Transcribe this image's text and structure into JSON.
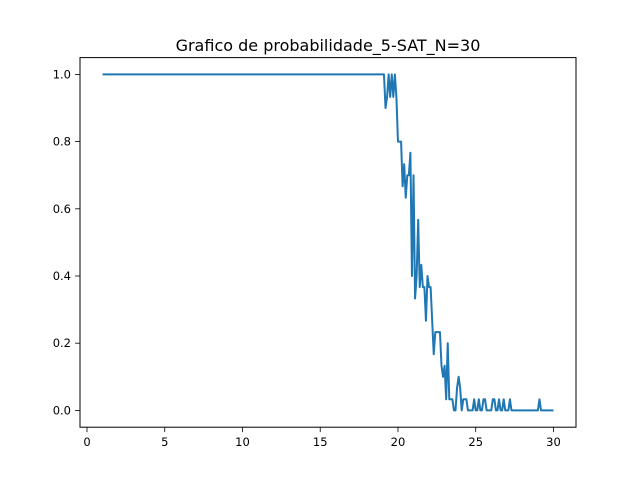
{
  "chart_data": {
    "type": "line",
    "title": "Grafico de probabilidade_5-SAT_N=30",
    "xlabel": "",
    "ylabel": "",
    "xlim": [
      -0.45,
      31.45
    ],
    "ylim": [
      -0.05,
      1.05
    ],
    "x_ticks": [
      0,
      5,
      10,
      15,
      20,
      25,
      30
    ],
    "y_ticks": [
      0.0,
      0.2,
      0.4,
      0.6,
      0.8,
      1.0
    ],
    "x_tick_labels": [
      "0",
      "5",
      "10",
      "15",
      "20",
      "25",
      "30"
    ],
    "y_tick_labels": [
      "0.0",
      "0.2",
      "0.4",
      "0.6",
      "0.8",
      "1.0"
    ],
    "grid": false,
    "legend": "none",
    "line_color": "#1f77b4",
    "series": [
      {
        "x": [
          1.0,
          19.1,
          19.2,
          19.3,
          19.4,
          19.5,
          19.6,
          19.7,
          19.8,
          19.9,
          20.0,
          20.2,
          20.3,
          20.4,
          20.5,
          20.6,
          20.7,
          20.8,
          20.9,
          21.0,
          21.1,
          21.2,
          21.3,
          21.4,
          21.5,
          21.6,
          21.7,
          21.8,
          21.9,
          22.0,
          22.1,
          22.2,
          22.3,
          22.4,
          22.5,
          22.6,
          22.7,
          22.8,
          22.9,
          23.0,
          23.1,
          23.2,
          23.3,
          23.4,
          23.5,
          23.6,
          23.7,
          23.8,
          23.9,
          24.0,
          24.1,
          24.2,
          24.3,
          24.4,
          24.5,
          24.6,
          24.7,
          24.8,
          24.9,
          25.0,
          25.1,
          25.2,
          25.3,
          25.4,
          25.5,
          25.6,
          25.7,
          25.8,
          25.9,
          26.0,
          26.1,
          26.2,
          26.3,
          26.4,
          26.5,
          26.6,
          26.7,
          26.8,
          26.9,
          27.0,
          27.1,
          27.2,
          27.3,
          27.4,
          27.5,
          28.9,
          29.0,
          29.1,
          29.2,
          30.0
        ],
        "values": [
          1.0,
          1.0,
          0.9,
          0.933,
          1.0,
          0.933,
          1.0,
          0.933,
          1.0,
          0.933,
          0.8,
          0.8,
          0.667,
          0.733,
          0.633,
          0.7,
          0.7,
          0.767,
          0.4,
          0.7,
          0.333,
          0.4,
          0.567,
          0.367,
          0.433,
          0.367,
          0.367,
          0.267,
          0.4,
          0.367,
          0.367,
          0.267,
          0.167,
          0.233,
          0.233,
          0.233,
          0.233,
          0.133,
          0.1,
          0.133,
          0.033,
          0.2,
          0.033,
          0.033,
          0.033,
          0.0,
          0.0,
          0.067,
          0.1,
          0.067,
          0.0,
          0.033,
          0.033,
          0.033,
          0.0,
          0.0,
          0.0,
          0.0,
          0.033,
          0.0,
          0.0,
          0.033,
          0.0,
          0.0,
          0.033,
          0.033,
          0.0,
          0.0,
          0.0,
          0.0,
          0.033,
          0.033,
          0.0,
          0.0,
          0.033,
          0.0,
          0.0,
          0.033,
          0.0,
          0.0,
          0.0,
          0.033,
          0.0,
          0.0,
          0.0,
          0.0,
          0.0,
          0.033,
          0.0,
          0.0
        ]
      }
    ]
  }
}
